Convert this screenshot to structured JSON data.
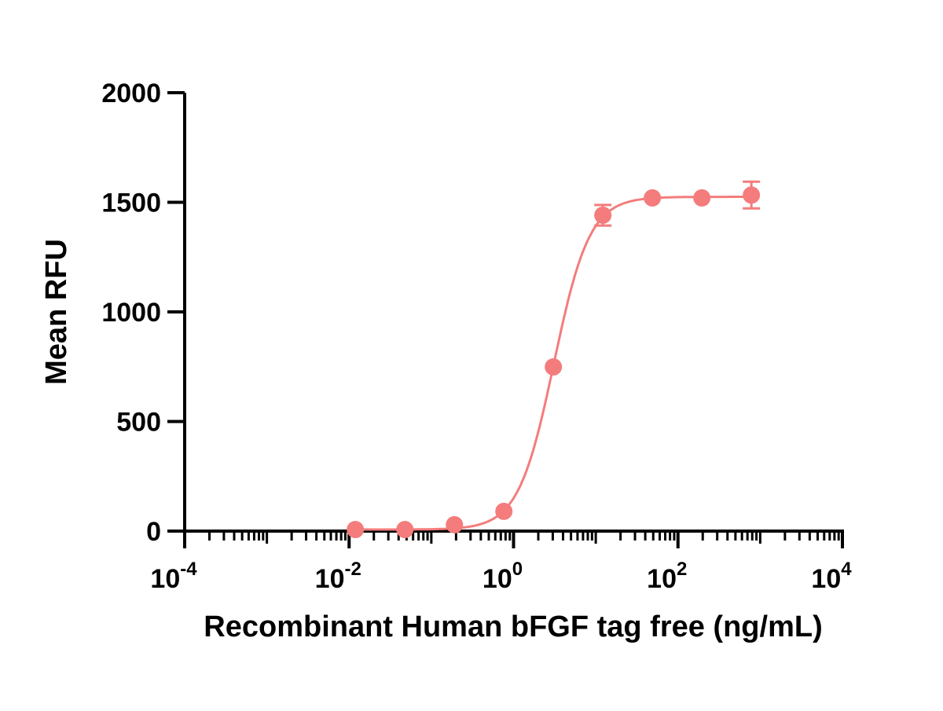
{
  "chart_data": {
    "type": "scatter",
    "title": "",
    "xlabel": "Recombinant Human bFGF tag free (ng/mL)",
    "ylabel": "Mean RFU",
    "xscale": "log10",
    "xlim": [
      0.0001,
      10000
    ],
    "ylim": [
      0,
      2000
    ],
    "x_ticks": [
      {
        "base": "10",
        "exp": "-4",
        "value": 0.0001
      },
      {
        "base": "10",
        "exp": "-2",
        "value": 0.01
      },
      {
        "base": "10",
        "exp": "0",
        "value": 1
      },
      {
        "base": "10",
        "exp": "2",
        "value": 100
      },
      {
        "base": "10",
        "exp": "4",
        "value": 10000
      }
    ],
    "y_ticks": [
      "0",
      "500",
      "1000",
      "1500",
      "2000"
    ],
    "grid": false,
    "color": "#f47c7c",
    "series": [
      {
        "name": "Recombinant Human bFGF tag free",
        "x": [
          0.0119,
          0.0477,
          0.191,
          0.763,
          3.05,
          12.2,
          48.8,
          195.3,
          781.25
        ],
        "y": [
          7,
          7,
          29,
          90,
          749,
          1441,
          1520,
          1520,
          1533
        ],
        "error": [
          0,
          0,
          0,
          0,
          0,
          47,
          0,
          0,
          61
        ]
      }
    ],
    "fit": {
      "model": "4PL",
      "bottom": 7,
      "top": 1525,
      "ec50": 3.1,
      "hill": 2.0
    }
  }
}
